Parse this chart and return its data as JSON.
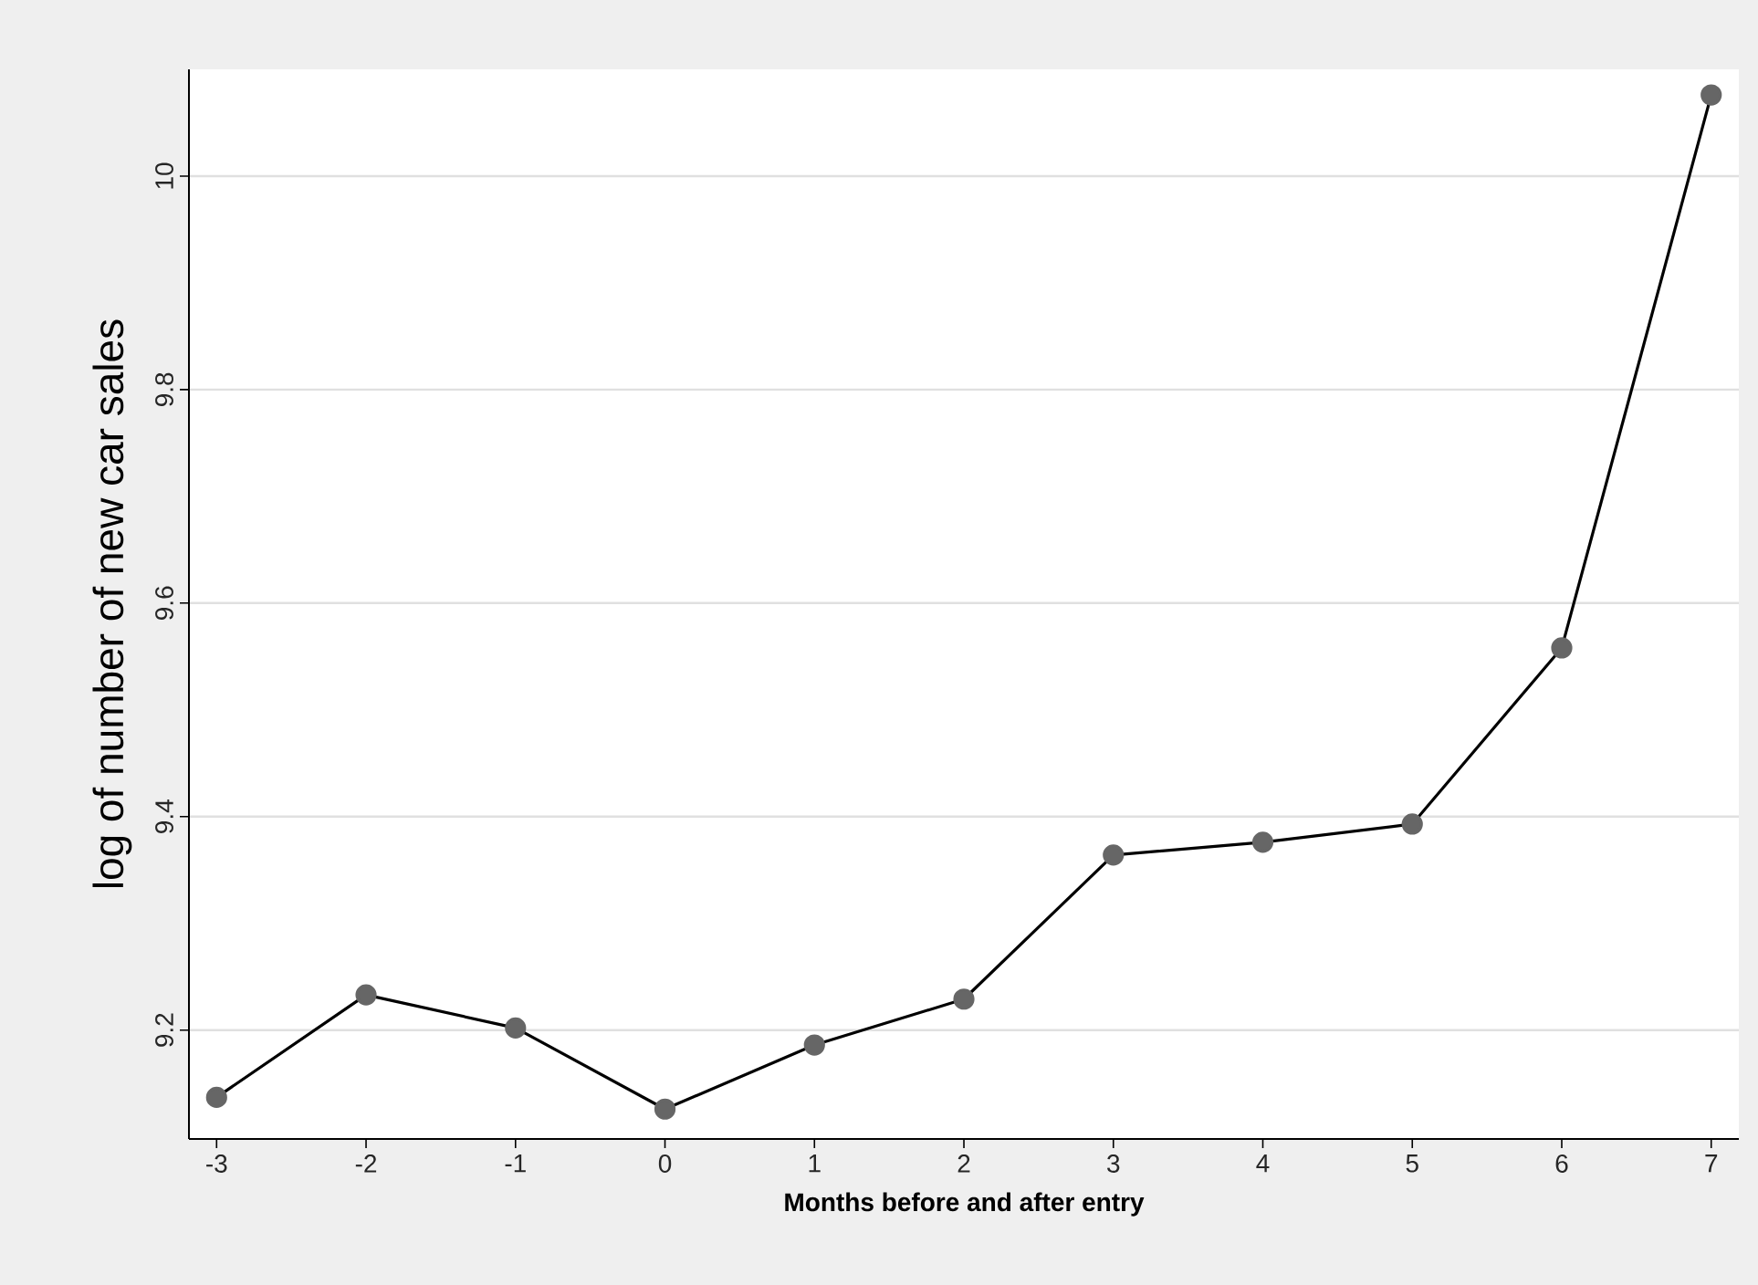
{
  "chart_data": {
    "type": "line",
    "xlabel": "Months before and after entry",
    "ylabel": "log of number of new car sales",
    "x": [
      -3,
      -2,
      -1,
      0,
      1,
      2,
      3,
      4,
      5,
      6,
      7
    ],
    "series": [
      {
        "color": "#000000",
        "values": [
          9.137,
          9.233,
          9.202,
          9.126,
          9.186,
          9.229,
          9.364,
          9.376,
          9.393,
          9.558,
          10.076
        ]
      }
    ],
    "xlim": [
      -3.185,
      7.185
    ],
    "ylim": [
      9.098,
      10.1
    ],
    "xticks": [
      -3,
      -2,
      -1,
      0,
      1,
      2,
      3,
      4,
      5,
      6,
      7
    ],
    "yticks": [
      9.2,
      9.4,
      9.6,
      9.8,
      10
    ],
    "grid": "y",
    "marker": "circle",
    "line_style": "solid"
  }
}
